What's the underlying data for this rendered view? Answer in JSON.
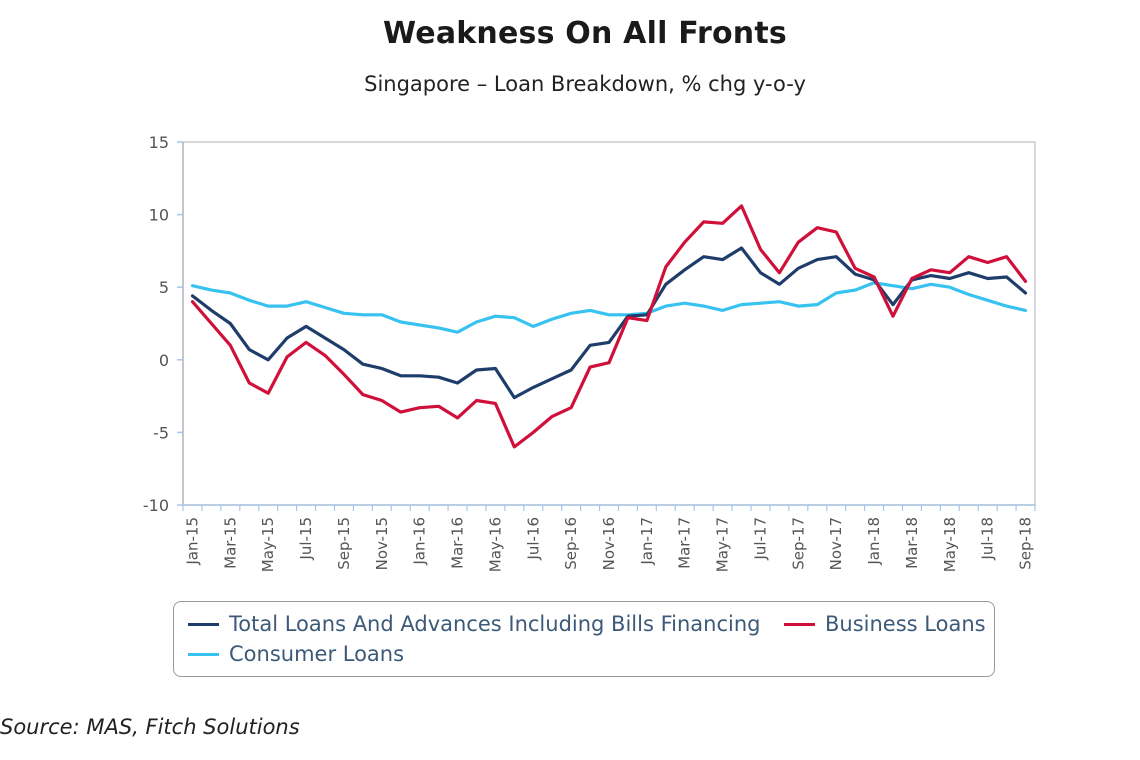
{
  "chart_data": {
    "type": "line",
    "title": "Weakness On All Fronts",
    "subtitle": "Singapore – Loan Breakdown, % chg y-o-y",
    "xlabel": "",
    "ylabel": "",
    "ylim": [
      -10,
      15
    ],
    "yticks": [
      "15",
      "10",
      "5",
      "0",
      "-5",
      "-10"
    ],
    "ytick_values": [
      15,
      10,
      5,
      0,
      -5,
      -10
    ],
    "grid": false,
    "legend_position": "bottom",
    "x": [
      "Jan-15",
      "Feb-15",
      "Mar-15",
      "Apr-15",
      "May-15",
      "Jun-15",
      "Jul-15",
      "Aug-15",
      "Sep-15",
      "Oct-15",
      "Nov-15",
      "Dec-15",
      "Jan-16",
      "Feb-16",
      "Mar-16",
      "Apr-16",
      "May-16",
      "Jun-16",
      "Jul-16",
      "Aug-16",
      "Sep-16",
      "Oct-16",
      "Nov-16",
      "Dec-16",
      "Jan-17",
      "Feb-17",
      "Mar-17",
      "Apr-17",
      "May-17",
      "Jun-17",
      "Jul-17",
      "Aug-17",
      "Sep-17",
      "Oct-17",
      "Nov-17",
      "Dec-17",
      "Jan-18",
      "Feb-18",
      "Mar-18",
      "Apr-18",
      "May-18",
      "Jun-18",
      "Jul-18",
      "Aug-18",
      "Sep-18"
    ],
    "xtick_labels": [
      "Jan-15",
      "Mar-15",
      "May-15",
      "Jul-15",
      "Sep-15",
      "Nov-15",
      "Jan-16",
      "Mar-16",
      "May-16",
      "Jul-16",
      "Sep-16",
      "Nov-16",
      "Jan-17",
      "Mar-17",
      "May-17",
      "Jul-17",
      "Sep-17",
      "Nov-17",
      "Jan-18",
      "Mar-18",
      "May-18",
      "Jul-18",
      "Sep-18"
    ],
    "series": [
      {
        "name": "Total Loans And Advances Including Bills Financing",
        "color": "#1f3d6b",
        "values": [
          4.4,
          3.4,
          2.5,
          0.7,
          0.0,
          1.5,
          2.3,
          1.5,
          0.7,
          -0.3,
          -0.6,
          -1.1,
          -1.1,
          -1.2,
          -1.6,
          -0.7,
          -0.6,
          -2.6,
          -1.9,
          -1.3,
          -0.7,
          1.0,
          1.2,
          3.0,
          3.1,
          5.2,
          6.2,
          7.1,
          6.9,
          7.7,
          6.0,
          5.2,
          6.3,
          6.9,
          7.1,
          5.9,
          5.5,
          3.8,
          5.5,
          5.8,
          5.6,
          6.0,
          5.6,
          5.7,
          4.6
        ]
      },
      {
        "name": "Business Loans",
        "color": "#d0103a",
        "values": [
          4.0,
          2.5,
          1.0,
          -1.6,
          -2.3,
          0.2,
          1.2,
          0.3,
          -1.0,
          -2.4,
          -2.8,
          -3.6,
          -3.3,
          -3.2,
          -4.0,
          -2.8,
          -3.0,
          -6.0,
          -5.0,
          -3.9,
          -3.3,
          -0.5,
          -0.2,
          2.9,
          2.7,
          6.4,
          8.1,
          9.5,
          9.4,
          10.6,
          7.6,
          6.0,
          8.1,
          9.1,
          8.8,
          6.3,
          5.7,
          3.0,
          5.6,
          6.2,
          6.0,
          7.1,
          6.7,
          7.1,
          5.4
        ]
      },
      {
        "name": "Consumer Loans",
        "color": "#38c2f0",
        "values": [
          5.1,
          4.8,
          4.6,
          4.1,
          3.7,
          3.7,
          4.0,
          3.6,
          3.2,
          3.1,
          3.1,
          2.6,
          2.4,
          2.2,
          1.9,
          2.6,
          3.0,
          2.9,
          2.3,
          2.8,
          3.2,
          3.4,
          3.1,
          3.1,
          3.2,
          3.7,
          3.9,
          3.7,
          3.4,
          3.8,
          3.9,
          4.0,
          3.7,
          3.8,
          4.6,
          4.8,
          5.3,
          5.1,
          4.9,
          5.2,
          5.0,
          4.5,
          4.1,
          3.7,
          3.4
        ]
      }
    ],
    "source": "Source: MAS, Fitch Solutions"
  }
}
